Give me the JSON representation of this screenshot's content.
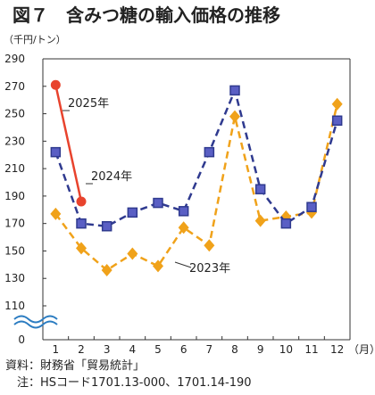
{
  "chart_data": {
    "type": "line",
    "title": "図７　含みつ糖の輸入価格の推移",
    "ylabel": "（千円/トン）",
    "xlabel": "（月）",
    "categories": [
      "1",
      "2",
      "3",
      "4",
      "5",
      "6",
      "7",
      "8",
      "9",
      "10",
      "11",
      "12"
    ],
    "y_ticks": [
      "290",
      "270",
      "250",
      "230",
      "210",
      "190",
      "170",
      "150",
      "130",
      "110",
      "0"
    ],
    "ylim": [
      110,
      290
    ],
    "axis_break": true,
    "grid": false,
    "series": [
      {
        "name": "2025年",
        "color": "#e8432d",
        "style": "solid",
        "marker": "circle",
        "values": [
          271,
          186,
          null,
          null,
          null,
          null,
          null,
          null,
          null,
          null,
          null,
          null
        ]
      },
      {
        "name": "2024年",
        "color": "#2f3a8f",
        "style": "dashed",
        "marker": "square",
        "values": [
          222,
          170,
          168,
          178,
          185,
          179,
          222,
          267,
          195,
          170,
          182,
          245
        ]
      },
      {
        "name": "2023年",
        "color": "#f0a21a",
        "style": "dashed",
        "marker": "diamond",
        "values": [
          177,
          152,
          136,
          148,
          139,
          167,
          154,
          248,
          172,
          175,
          178,
          257
        ]
      }
    ],
    "annotations": [
      "2025年",
      "2024年",
      "2023年"
    ]
  },
  "source": {
    "line1": "資料：財務省「貿易統計」",
    "line2": "　注：HSコード1701.13-000、1701.14-190"
  }
}
